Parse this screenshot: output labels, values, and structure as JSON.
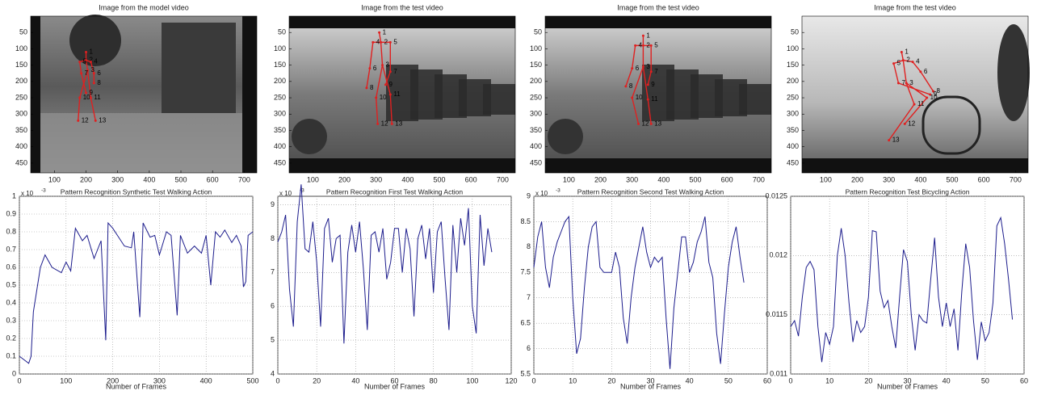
{
  "chart_data": [
    {
      "type": "image",
      "title": "Image from the model video",
      "xlim": [
        25,
        740
      ],
      "ylim": [
        480,
        0
      ],
      "xticks": [
        100,
        200,
        300,
        400,
        500,
        600,
        700
      ],
      "yticks": [
        50,
        100,
        150,
        200,
        250,
        300,
        350,
        400,
        450
      ],
      "joints": {
        "labels": [
          "1",
          "2",
          "3",
          "4",
          "5",
          "6",
          "7",
          "8",
          "9",
          "10",
          "11",
          "12",
          "13"
        ],
        "color": "#e02020",
        "x": [
          200,
          200,
          205,
          215,
          180,
          225,
          185,
          225,
          200,
          180,
          215,
          175,
          230
        ],
        "y": [
          110,
          135,
          165,
          140,
          140,
          175,
          175,
          205,
          235,
          250,
          250,
          320,
          320
        ]
      }
    },
    {
      "type": "image",
      "title": "Image from the test video",
      "xlim": [
        25,
        740
      ],
      "ylim": [
        480,
        0
      ],
      "xticks": [
        100,
        200,
        300,
        400,
        500,
        600,
        700
      ],
      "yticks": [
        50,
        100,
        150,
        200,
        250,
        300,
        350,
        400,
        450
      ],
      "joints": {
        "labels": [
          "1",
          "2",
          "3",
          "4",
          "5",
          "6",
          "7",
          "8",
          "9",
          "10",
          "11",
          "12",
          "13"
        ],
        "color": "#e02020",
        "x": [
          310,
          315,
          320,
          290,
          345,
          280,
          345,
          270,
          330,
          300,
          345,
          305,
          350
        ],
        "y": [
          50,
          80,
          150,
          80,
          80,
          160,
          170,
          220,
          210,
          250,
          240,
          330,
          330
        ]
      }
    },
    {
      "type": "image",
      "title": "Image from the test video",
      "xlim": [
        25,
        740
      ],
      "ylim": [
        480,
        0
      ],
      "xticks": [
        100,
        200,
        300,
        400,
        500,
        600,
        700
      ],
      "yticks": [
        50,
        100,
        150,
        200,
        250,
        300,
        350,
        400,
        450
      ],
      "joints": {
        "labels": [
          "1",
          "2",
          "3",
          "4",
          "5",
          "6",
          "7",
          "8",
          "9",
          "10",
          "11",
          "12",
          "13"
        ],
        "color": "#e02020",
        "x": [
          335,
          335,
          335,
          310,
          360,
          300,
          360,
          280,
          350,
          300,
          350,
          320,
          360
        ],
        "y": [
          60,
          90,
          155,
          90,
          90,
          160,
          170,
          215,
          210,
          250,
          255,
          330,
          330
        ]
      }
    },
    {
      "type": "image",
      "title": "Image from the test video",
      "xlim": [
        25,
        740
      ],
      "ylim": [
        480,
        0
      ],
      "xticks": [
        100,
        200,
        300,
        400,
        500,
        600,
        700
      ],
      "yticks": [
        50,
        100,
        150,
        200,
        250,
        300,
        350,
        400,
        450
      ],
      "joints": {
        "labels": [
          "1",
          "2",
          "3",
          "4",
          "5",
          "6",
          "7",
          "8",
          "9",
          "10",
          "11",
          "12",
          "13"
        ],
        "color": "#e02020",
        "x": [
          340,
          345,
          355,
          375,
          315,
          400,
          330,
          440,
          430,
          420,
          380,
          350,
          300
        ],
        "y": [
          110,
          135,
          205,
          140,
          145,
          170,
          205,
          230,
          240,
          250,
          270,
          330,
          380
        ]
      }
    },
    {
      "type": "line",
      "title": "Pattern Recognition Synthetic Test Walking Action",
      "x_label": "Number of Frames",
      "y_multiplier": "x 10",
      "y_multiplier_exp": "-3",
      "grid": true,
      "xlim": [
        0,
        500
      ],
      "xticks": [
        0,
        100,
        200,
        300,
        400,
        500
      ],
      "ylim": [
        0,
        1
      ],
      "yticks": [
        0,
        0.1,
        0.2,
        0.3,
        0.4,
        0.5,
        0.6,
        0.7,
        0.8,
        0.9,
        1
      ],
      "series": [
        {
          "color": "#1c1c8c",
          "x": [
            0,
            10,
            20,
            25,
            30,
            45,
            55,
            70,
            90,
            100,
            110,
            120,
            135,
            145,
            160,
            175,
            185,
            190,
            200,
            210,
            225,
            240,
            245,
            258,
            265,
            280,
            290,
            300,
            315,
            325,
            338,
            345,
            360,
            375,
            390,
            400,
            410,
            420,
            430,
            440,
            455,
            465,
            475,
            480,
            485,
            490,
            500
          ],
          "values": [
            0.1,
            0.08,
            0.06,
            0.1,
            0.35,
            0.6,
            0.67,
            0.6,
            0.57,
            0.63,
            0.58,
            0.82,
            0.75,
            0.78,
            0.65,
            0.75,
            0.19,
            0.85,
            0.82,
            0.78,
            0.72,
            0.71,
            0.8,
            0.32,
            0.85,
            0.77,
            0.78,
            0.67,
            0.8,
            0.78,
            0.33,
            0.78,
            0.68,
            0.72,
            0.68,
            0.78,
            0.5,
            0.8,
            0.77,
            0.81,
            0.74,
            0.78,
            0.72,
            0.49,
            0.52,
            0.78,
            0.8
          ]
        }
      ]
    },
    {
      "type": "line",
      "title": "Pattern Recognition First Test Walking Action",
      "x_label": "Number of Frames",
      "y_multiplier": "x 10",
      "y_multiplier_exp": "-3",
      "grid": true,
      "xlim": [
        0,
        120
      ],
      "xticks": [
        0,
        20,
        40,
        60,
        80,
        100,
        120
      ],
      "ylim": [
        4,
        9.25
      ],
      "yticks": [
        4,
        5,
        6,
        7,
        8,
        9
      ],
      "series": [
        {
          "color": "#1c1c8c",
          "x": [
            0,
            2,
            4,
            6,
            8,
            10,
            12,
            14,
            16,
            18,
            20,
            22,
            24,
            26,
            28,
            30,
            32,
            34,
            36,
            38,
            40,
            42,
            44,
            46,
            48,
            50,
            52,
            54,
            56,
            58,
            60,
            62,
            64,
            66,
            68,
            70,
            72,
            74,
            76,
            78,
            80,
            82,
            84,
            86,
            88,
            90,
            92,
            94,
            96,
            98,
            100,
            102,
            104,
            106,
            108,
            110
          ],
          "values": [
            7.9,
            8.2,
            8.7,
            6.5,
            5.4,
            8.5,
            9.6,
            7.7,
            7.6,
            8.5,
            7.3,
            5.4,
            8.3,
            8.6,
            7.3,
            8.0,
            8.1,
            4.9,
            7.6,
            8.4,
            7.6,
            8.5,
            7.1,
            5.3,
            8.1,
            8.2,
            7.6,
            8.3,
            6.8,
            7.3,
            8.3,
            8.3,
            7.0,
            8.3,
            7.7,
            5.7,
            8.0,
            8.4,
            7.4,
            8.3,
            6.4,
            8.2,
            8.5,
            6.8,
            5.3,
            8.4,
            7.0,
            8.6,
            7.8,
            8.9,
            6.0,
            5.2,
            8.7,
            7.2,
            8.3,
            7.6
          ]
        }
      ]
    },
    {
      "type": "line",
      "title": "Pattern Recognition Second Test Walking Action",
      "x_label": "Number of Frames",
      "y_multiplier": "x 10",
      "y_multiplier_exp": "-3",
      "grid": true,
      "xlim": [
        0,
        60
      ],
      "xticks": [
        0,
        10,
        20,
        30,
        40,
        50,
        60
      ],
      "ylim": [
        5.5,
        9
      ],
      "yticks": [
        5.5,
        6,
        6.5,
        7,
        7.5,
        8,
        8.5,
        9
      ],
      "series": [
        {
          "color": "#1c1c8c",
          "x": [
            0,
            1,
            2,
            3,
            4,
            5,
            6,
            7,
            8,
            9,
            10,
            11,
            12,
            13,
            14,
            15,
            16,
            17,
            18,
            19,
            20,
            21,
            22,
            23,
            24,
            25,
            26,
            27,
            28,
            29,
            30,
            31,
            32,
            33,
            34,
            35,
            36,
            37,
            38,
            39,
            40,
            41,
            42,
            43,
            44,
            45,
            46,
            47,
            48,
            49,
            50,
            51,
            52,
            53,
            54
          ],
          "values": [
            7.6,
            8.2,
            8.5,
            7.6,
            7.2,
            7.8,
            8.1,
            8.3,
            8.5,
            8.6,
            7.0,
            5.9,
            6.2,
            7.2,
            8.0,
            8.4,
            8.5,
            7.6,
            7.5,
            7.5,
            7.5,
            7.9,
            7.6,
            6.6,
            6.1,
            7.0,
            7.6,
            8.0,
            8.4,
            7.9,
            7.6,
            7.8,
            7.7,
            7.8,
            6.6,
            5.6,
            6.8,
            7.5,
            8.2,
            8.2,
            7.5,
            7.7,
            8.1,
            8.3,
            8.6,
            7.7,
            7.4,
            6.3,
            5.7,
            6.7,
            7.6,
            8.1,
            8.4,
            7.8,
            7.3
          ]
        }
      ]
    },
    {
      "type": "line",
      "title": "Pattern Recognition Test Bicycling Action",
      "x_label": "Number of Frames",
      "grid": true,
      "xlim": [
        0,
        60
      ],
      "xticks": [
        0,
        10,
        20,
        30,
        40,
        50,
        60
      ],
      "ylim": [
        0.011,
        0.0125
      ],
      "yticks": [
        0.011,
        0.0115,
        0.012,
        0.0125
      ],
      "series": [
        {
          "color": "#1c1c8c",
          "x": [
            0,
            1,
            2,
            3,
            4,
            5,
            6,
            7,
            8,
            9,
            10,
            11,
            12,
            13,
            14,
            15,
            16,
            17,
            18,
            19,
            20,
            21,
            22,
            23,
            24,
            25,
            26,
            27,
            28,
            29,
            30,
            31,
            32,
            33,
            34,
            35,
            36,
            37,
            38,
            39,
            40,
            41,
            42,
            43,
            44,
            45,
            46,
            47,
            48,
            49,
            50,
            51,
            52,
            53,
            54,
            55,
            56,
            57
          ],
          "values": [
            0.0114,
            0.01145,
            0.01132,
            0.01165,
            0.0119,
            0.01195,
            0.01188,
            0.0114,
            0.0111,
            0.01135,
            0.01125,
            0.0114,
            0.012,
            0.01223,
            0.012,
            0.0116,
            0.01127,
            0.01145,
            0.01135,
            0.0114,
            0.01165,
            0.01221,
            0.0122,
            0.0117,
            0.01156,
            0.01162,
            0.0114,
            0.01122,
            0.01165,
            0.01205,
            0.01195,
            0.0115,
            0.0112,
            0.0115,
            0.01145,
            0.01143,
            0.0118,
            0.01215,
            0.01165,
            0.0114,
            0.0116,
            0.0114,
            0.01155,
            0.0112,
            0.0117,
            0.0121,
            0.0119,
            0.01145,
            0.01112,
            0.01144,
            0.01128,
            0.01135,
            0.0116,
            0.01225,
            0.01232,
            0.0121,
            0.0118,
            0.01146
          ]
        }
      ]
    }
  ]
}
